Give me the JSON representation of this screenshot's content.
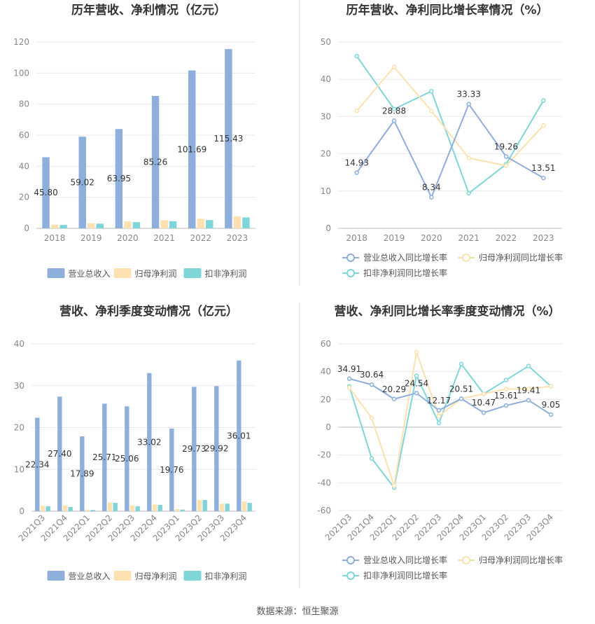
{
  "source": "数据来源：恒生聚源",
  "colors": {
    "revenue": "#8eaedc",
    "net_profit": "#fde1b0",
    "deducted_profit": "#7fd6d9",
    "rev_line": "#8eaedc",
    "np_line": "#fde1b0",
    "dp_line": "#7fd6d9"
  },
  "chart_data": [
    {
      "type": "bar",
      "title": "历年营收、净利情况（亿元）",
      "categories": [
        "2018",
        "2019",
        "2020",
        "2021",
        "2022",
        "2023"
      ],
      "ylim": [
        0,
        120
      ],
      "yticks": [
        0,
        20,
        40,
        60,
        80,
        100,
        120
      ],
      "series": [
        {
          "name": "营业总收入",
          "values": [
            45.8,
            59.02,
            63.95,
            85.26,
            101.69,
            115.43
          ],
          "labels": [
            "45.80",
            "59.02",
            "63.95",
            "85.26",
            "101.69",
            "115.43"
          ]
        },
        {
          "name": "归母净利润",
          "values": [
            2.3,
            3.3,
            4.4,
            5.2,
            6.1,
            7.7
          ]
        },
        {
          "name": "扣非净利润",
          "values": [
            2.2,
            3.0,
            4.0,
            4.6,
            5.3,
            7.0
          ]
        }
      ],
      "legend": "bottom"
    },
    {
      "type": "line",
      "title": "历年营收、净利同比增长率情况（%）",
      "categories": [
        "2018",
        "2019",
        "2020",
        "2021",
        "2022",
        "2023"
      ],
      "ylim": [
        0,
        50
      ],
      "yticks": [
        0,
        10,
        20,
        30,
        40,
        50
      ],
      "series": [
        {
          "name": "营业总收入同比增长率",
          "values": [
            14.93,
            28.88,
            8.34,
            33.33,
            19.26,
            13.51
          ],
          "labels": [
            "14.93",
            "28.88",
            "8.34",
            "33.33",
            "19.26",
            "13.51"
          ]
        },
        {
          "name": "归母净利润同比增长率",
          "values": [
            31.5,
            43.3,
            31.5,
            18.9,
            16.8,
            27.6
          ]
        },
        {
          "name": "扣非净利润同比增长率",
          "values": [
            46.2,
            32.0,
            36.8,
            9.4,
            17.2,
            34.3
          ]
        }
      ],
      "legend": "bottom"
    },
    {
      "type": "bar",
      "title": "营收、净利季度变动情况（亿元）",
      "categories": [
        "2021Q3",
        "2021Q4",
        "2022Q1",
        "2022Q2",
        "2022Q3",
        "2022Q4",
        "2023Q1",
        "2023Q2",
        "2023Q3",
        "2023Q4"
      ],
      "ylim": [
        0,
        40
      ],
      "yticks": [
        0,
        10,
        20,
        30,
        40
      ],
      "series": [
        {
          "name": "营业总收入",
          "values": [
            22.34,
            27.4,
            17.89,
            25.71,
            25.06,
            33.02,
            19.76,
            29.73,
            29.92,
            36.01
          ],
          "labels": [
            "22.34",
            "27.40",
            "17.89",
            "25.71",
            "25.06",
            "33.02",
            "19.76",
            "29.73",
            "29.92",
            "36.01"
          ]
        },
        {
          "name": "归母净利润",
          "values": [
            1.3,
            1.4,
            0.4,
            2.1,
            1.4,
            1.6,
            0.5,
            2.7,
            1.8,
            2.3
          ]
        },
        {
          "name": "扣非净利润",
          "values": [
            1.2,
            1.0,
            0.3,
            2.0,
            1.2,
            1.5,
            0.4,
            2.7,
            1.8,
            2.0
          ]
        }
      ],
      "legend": "bottom"
    },
    {
      "type": "line",
      "title": "营收、净利同比增长率季度变动情况（%）",
      "categories": [
        "2021Q3",
        "2021Q4",
        "2022Q1",
        "2022Q2",
        "2022Q3",
        "2022Q4",
        "2023Q1",
        "2023Q2",
        "2023Q3",
        "2023Q4"
      ],
      "ylim": [
        -60,
        60
      ],
      "yticks": [
        -60,
        -40,
        -20,
        0,
        20,
        40,
        60
      ],
      "series": [
        {
          "name": "营业总收入同比增长率",
          "values": [
            34.91,
            30.64,
            20.29,
            24.54,
            12.17,
            20.51,
            10.47,
            15.61,
            19.41,
            9.05
          ],
          "labels": [
            "34.91",
            "30.64",
            "20.29",
            "24.54",
            "12.17",
            "20.51",
            "10.47",
            "15.61",
            "19.41",
            "9.05"
          ]
        },
        {
          "name": "归母净利润同比增长率",
          "values": [
            28.5,
            6.5,
            -42.0,
            54.0,
            8.0,
            20.5,
            24.0,
            27.5,
            27.5,
            29.5
          ]
        },
        {
          "name": "扣非净利润同比增长率",
          "values": [
            29.5,
            -22.5,
            -43.5,
            37.0,
            3.0,
            45.5,
            24.0,
            34.0,
            44.0,
            29.5
          ]
        }
      ],
      "legend": "bottom"
    }
  ]
}
